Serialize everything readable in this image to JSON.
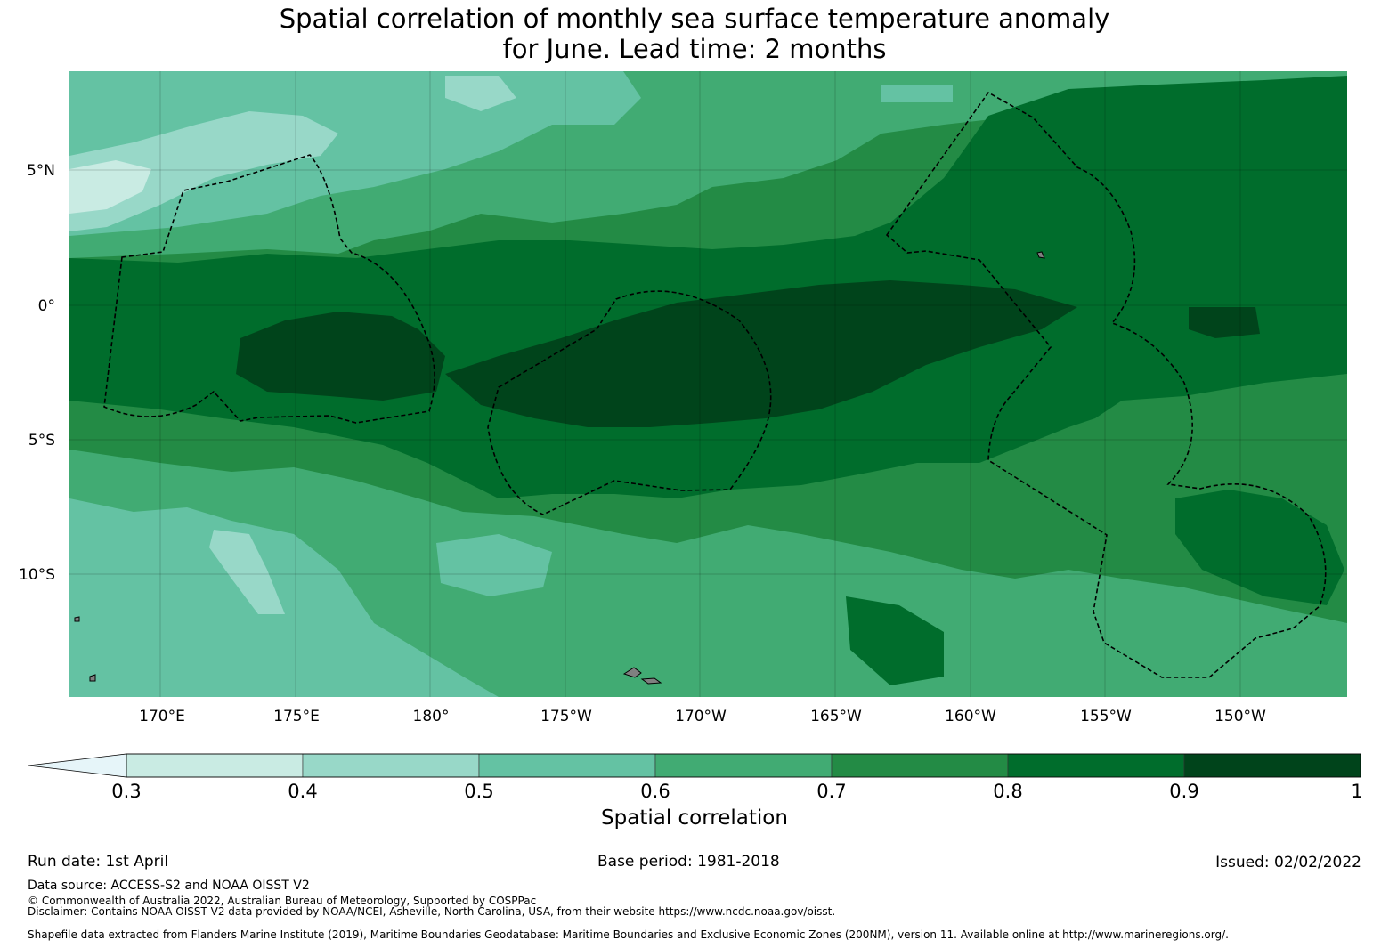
{
  "title": {
    "line1": "Spatial correlation of monthly sea surface temperature anomaly",
    "line2": "for June. Lead time: 2 months"
  },
  "map": {
    "lon_ticks": [
      "170°E",
      "175°E",
      "180°",
      "175°W",
      "170°W",
      "165°W",
      "160°W",
      "155°W",
      "150°W"
    ],
    "lat_ticks": [
      "5°N",
      "0°",
      "5°S",
      "10°S"
    ],
    "lon_range": [
      166.6,
      213.9
    ],
    "lat_range": [
      -14.5,
      8.7
    ],
    "field_description_colors": {
      "0.3-0.4": "#c9ebe3",
      "0.4-0.5": "#98d8c8",
      "0.5-0.6": "#64c2a3",
      "0.6-0.7": "#41ab73",
      "0.7-0.8": "#238b45",
      "0.8-0.9": "#006d2c",
      "0.9-1": "#00441b"
    },
    "gridlines": true,
    "eez_boundaries": "dashed black outlines"
  },
  "colorbar": {
    "label": "Spatial correlation",
    "ticks": [
      "0.3",
      "0.4",
      "0.5",
      "0.6",
      "0.7",
      "0.8",
      "0.9",
      "1"
    ],
    "under_color": "#e6f5f9",
    "colors": [
      "#c9ebe3",
      "#98d8c8",
      "#64c2a3",
      "#41ab73",
      "#238b45",
      "#006d2c",
      "#00441b"
    ]
  },
  "footer": {
    "run_date": "Run date: 1st April",
    "base_period": "Base period: 1981-2018",
    "issued": "Issued: 02/02/2022",
    "data_source": "Data source: ACCESS-S2 and NOAA OISST V2",
    "copyright": "© Commonwealth of Australia 2022, Australian Bureau of Meteorology, Supported by COSPPac",
    "disclaimer": "Disclaimer: Contains NOAA OISST V2 data provided by NOAA/NCEI, Asheville, North Carolina, USA, from their website https://www.ncdc.noaa.gov/oisst.",
    "shapefile": "Shapefile data extracted from Flanders Marine Institute (2019), Maritime Boundaries Geodatabase: Maritime Boundaries and Exclusive Economic Zones (200NM), version 11. Available online at http://www.marineregions.org/."
  }
}
